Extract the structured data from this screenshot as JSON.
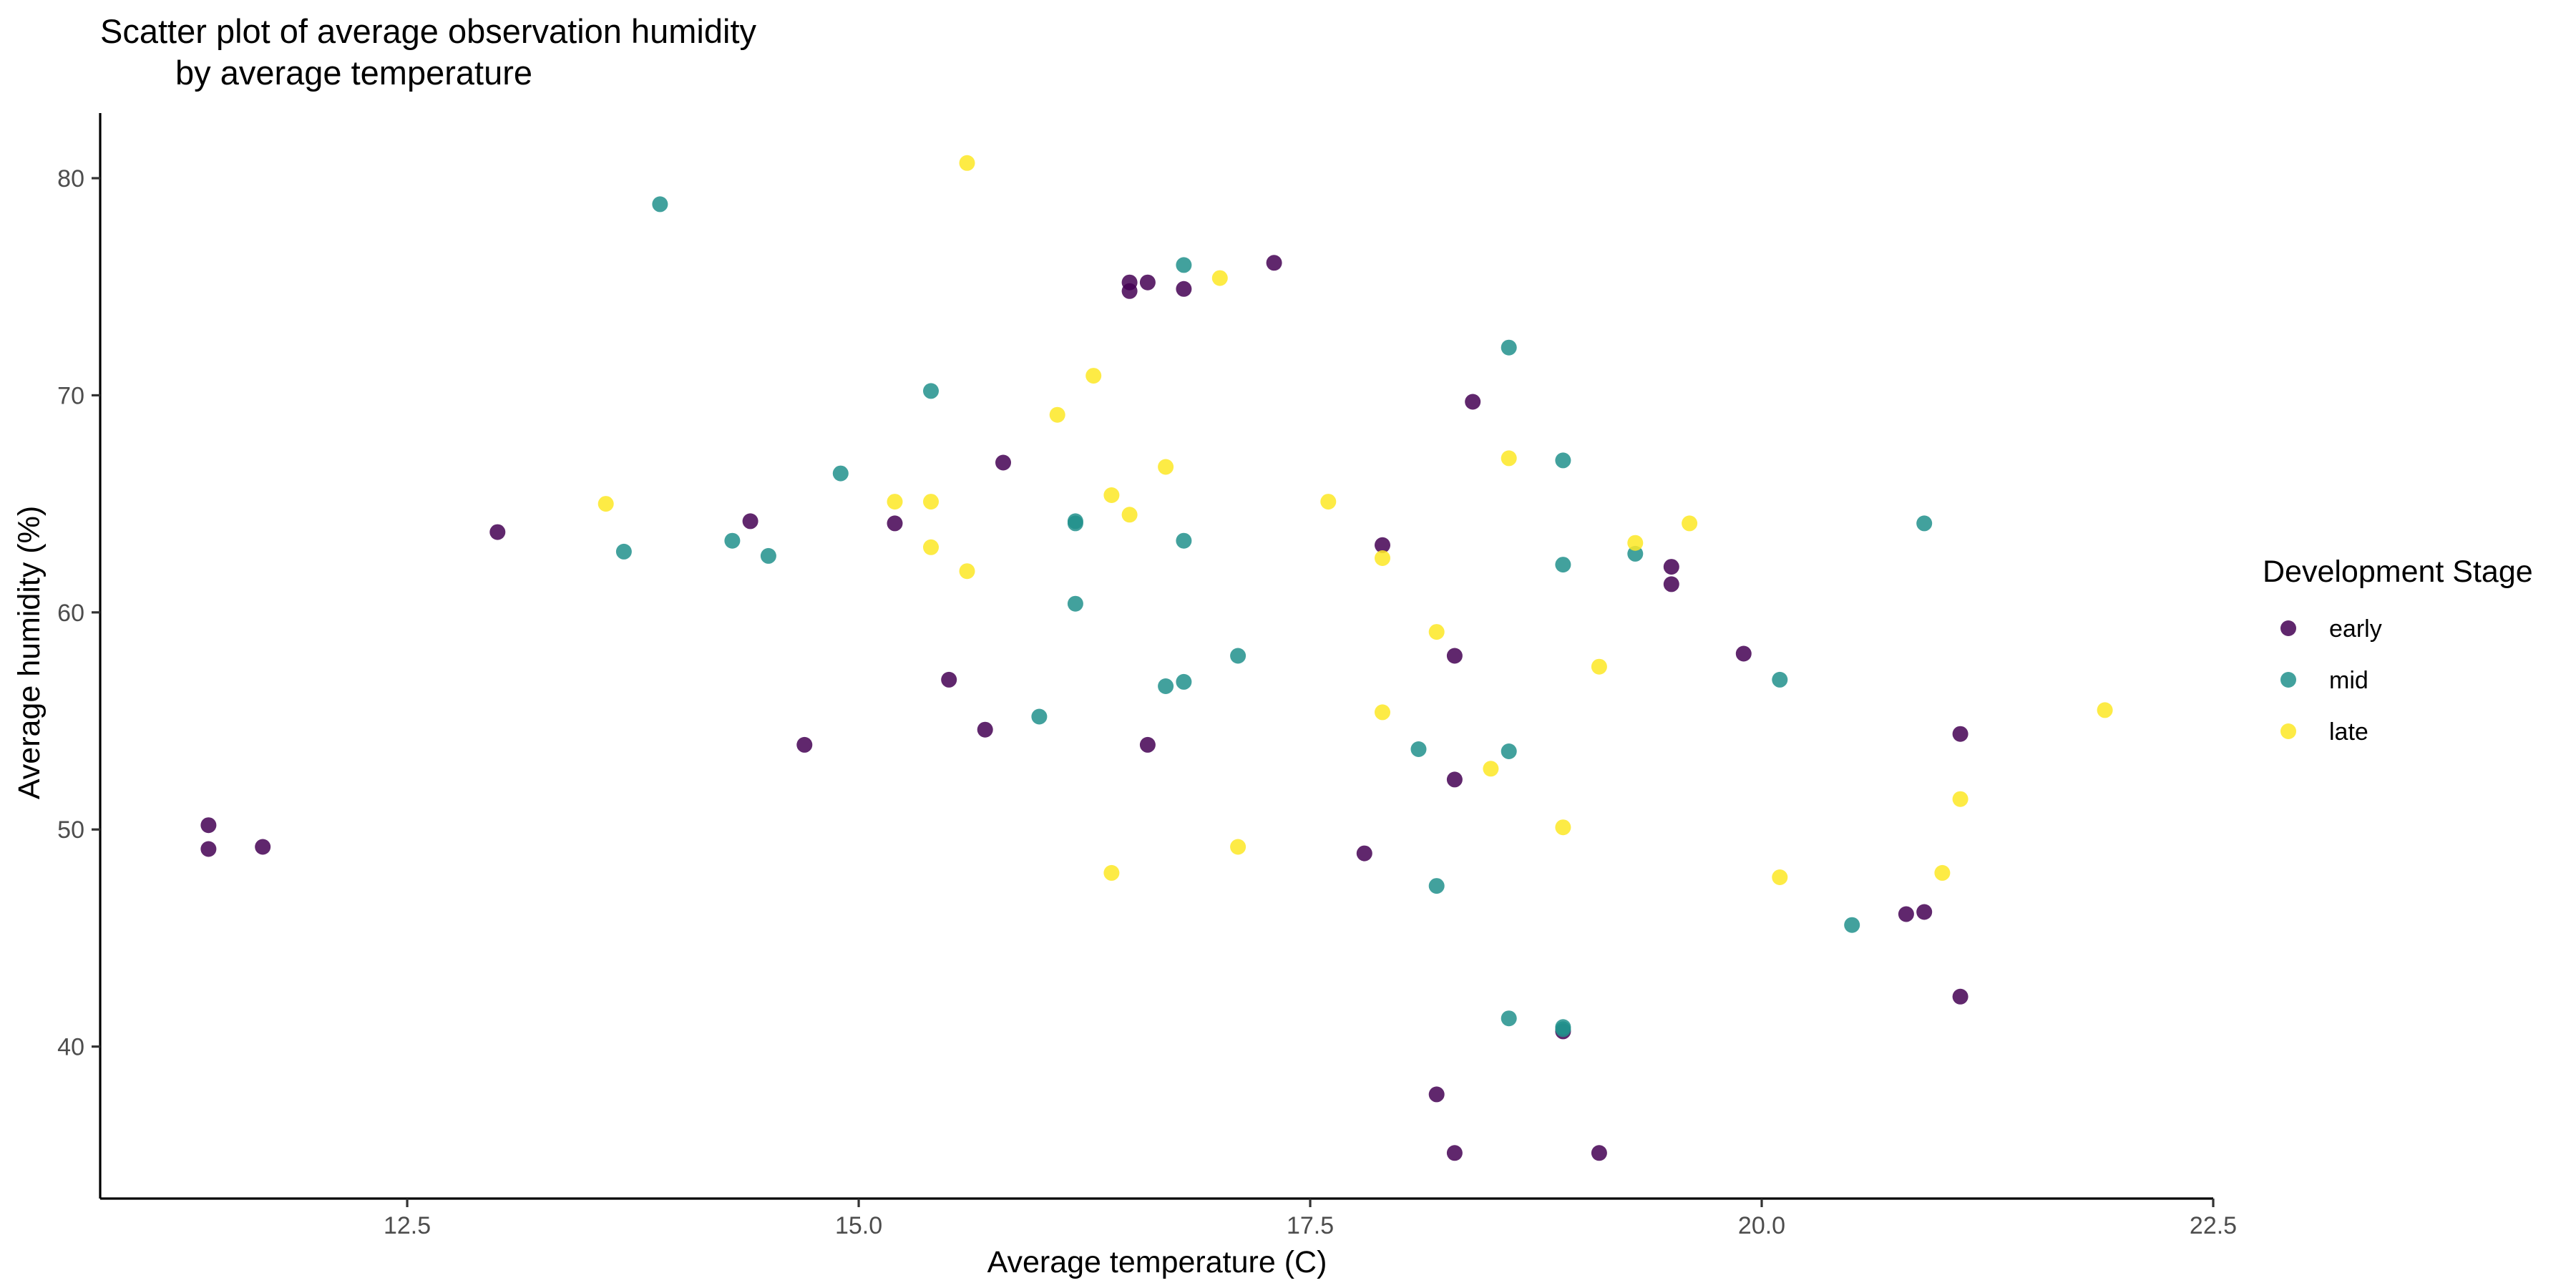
{
  "chart_data": {
    "type": "scatter",
    "title_lines": [
      "Scatter plot of average observation humidity",
      "by average temperature"
    ],
    "xlabel": "Average temperature (C)",
    "ylabel": "Average humidity (%)",
    "xlim": [
      10.8,
      22.5
    ],
    "ylim": [
      33,
      83
    ],
    "x_ticks": [
      12.5,
      15.0,
      17.5,
      20.0,
      22.5
    ],
    "x_tick_labels": [
      "12.5",
      "15.0",
      "17.5",
      "20.0",
      "22.5"
    ],
    "y_ticks": [
      40,
      50,
      60,
      70,
      80
    ],
    "y_tick_labels": [
      "40",
      "50",
      "60",
      "70",
      "80"
    ],
    "grid": false,
    "legend": {
      "title": "Development Stage",
      "placement": "right"
    },
    "series": [
      {
        "name": "early",
        "color": "#440154",
        "points": [
          [
            11.4,
            50.2
          ],
          [
            11.4,
            49.1
          ],
          [
            11.7,
            49.2
          ],
          [
            13.0,
            63.7
          ],
          [
            14.4,
            64.2
          ],
          [
            14.7,
            53.9
          ],
          [
            15.2,
            64.1
          ],
          [
            15.5,
            56.9
          ],
          [
            15.7,
            54.6
          ],
          [
            15.8,
            66.9
          ],
          [
            16.5,
            74.8
          ],
          [
            16.5,
            75.2
          ],
          [
            16.6,
            75.2
          ],
          [
            16.6,
            53.9
          ],
          [
            16.8,
            74.9
          ],
          [
            17.3,
            76.1
          ],
          [
            17.8,
            48.9
          ],
          [
            17.9,
            63.1
          ],
          [
            18.2,
            37.8
          ],
          [
            18.3,
            58.0
          ],
          [
            18.3,
            52.3
          ],
          [
            18.3,
            35.1
          ],
          [
            18.4,
            69.7
          ],
          [
            18.9,
            40.7
          ],
          [
            19.1,
            35.1
          ],
          [
            19.5,
            62.1
          ],
          [
            19.5,
            61.3
          ],
          [
            19.9,
            58.1
          ],
          [
            20.8,
            46.1
          ],
          [
            20.9,
            46.2
          ],
          [
            21.1,
            54.4
          ],
          [
            21.1,
            42.3
          ]
        ]
      },
      {
        "name": "mid",
        "color": "#21918c",
        "points": [
          [
            13.7,
            62.8
          ],
          [
            13.9,
            78.8
          ],
          [
            14.3,
            63.3
          ],
          [
            14.5,
            62.6
          ],
          [
            14.9,
            66.4
          ],
          [
            15.4,
            70.2
          ],
          [
            16.0,
            55.2
          ],
          [
            16.2,
            64.1
          ],
          [
            16.2,
            64.2
          ],
          [
            16.2,
            60.4
          ],
          [
            16.7,
            56.6
          ],
          [
            16.8,
            63.3
          ],
          [
            16.8,
            56.8
          ],
          [
            16.8,
            76.0
          ],
          [
            17.1,
            58.0
          ],
          [
            18.1,
            53.7
          ],
          [
            18.2,
            47.4
          ],
          [
            18.6,
            72.2
          ],
          [
            18.6,
            53.6
          ],
          [
            18.6,
            41.3
          ],
          [
            18.9,
            67.0
          ],
          [
            18.9,
            62.2
          ],
          [
            18.9,
            40.8
          ],
          [
            18.9,
            40.9
          ],
          [
            19.3,
            62.7
          ],
          [
            20.1,
            56.9
          ],
          [
            20.5,
            45.6
          ],
          [
            20.9,
            64.1
          ]
        ]
      },
      {
        "name": "late",
        "color": "#fde725",
        "points": [
          [
            13.6,
            65.0
          ],
          [
            15.2,
            65.1
          ],
          [
            15.4,
            65.1
          ],
          [
            15.4,
            63.0
          ],
          [
            15.6,
            61.9
          ],
          [
            15.6,
            80.7
          ],
          [
            16.1,
            69.1
          ],
          [
            16.3,
            70.9
          ],
          [
            16.4,
            48.0
          ],
          [
            16.4,
            65.4
          ],
          [
            16.5,
            64.5
          ],
          [
            16.7,
            66.7
          ],
          [
            17.0,
            75.4
          ],
          [
            17.1,
            49.2
          ],
          [
            17.6,
            65.1
          ],
          [
            17.9,
            62.5
          ],
          [
            17.9,
            55.4
          ],
          [
            18.2,
            59.1
          ],
          [
            18.5,
            52.8
          ],
          [
            18.6,
            67.1
          ],
          [
            18.9,
            50.1
          ],
          [
            19.1,
            57.5
          ],
          [
            19.3,
            63.2
          ],
          [
            19.6,
            64.1
          ],
          [
            20.1,
            47.8
          ],
          [
            21.0,
            48.0
          ],
          [
            21.1,
            51.4
          ],
          [
            21.9,
            55.5
          ]
        ]
      }
    ]
  }
}
